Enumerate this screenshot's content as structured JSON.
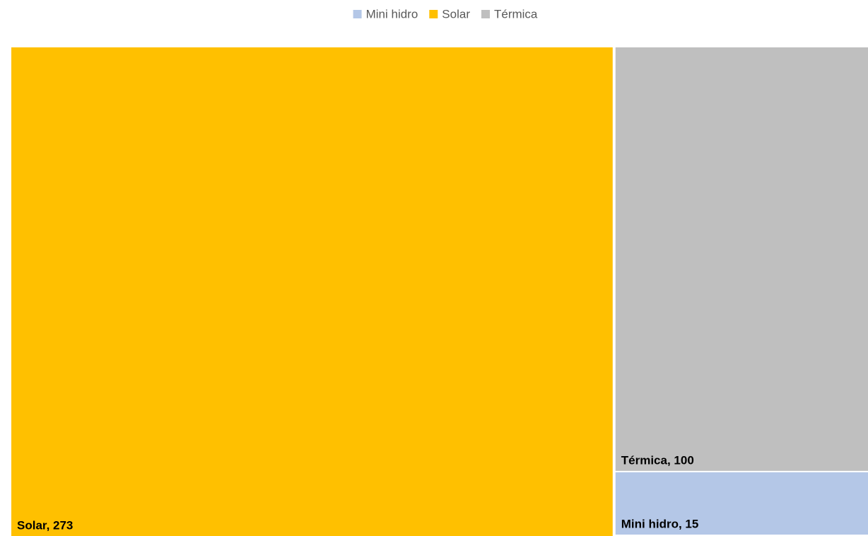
{
  "chart_data": {
    "type": "treemap",
    "categories": [
      "Mini hidro",
      "Solar",
      "Térmica"
    ],
    "values": [
      15,
      273,
      100
    ],
    "value_labels": [
      "Mini hidro, 15",
      "Solar, 273",
      "Térmica, 100"
    ],
    "colors": [
      "#b4c7e7",
      "#ffc000",
      "#bfbfbf"
    ],
    "legend": "top"
  }
}
